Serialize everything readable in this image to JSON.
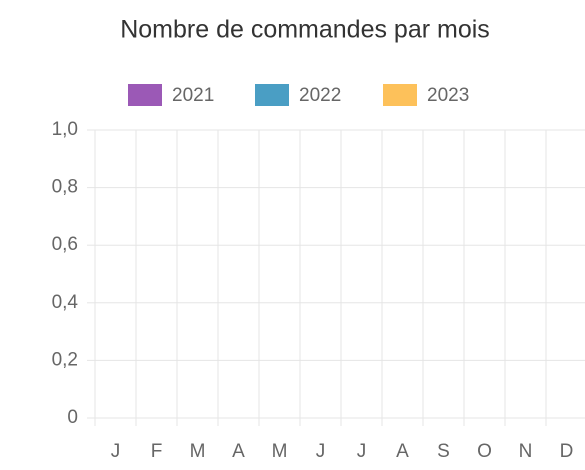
{
  "chart_data": {
    "type": "bar",
    "title": "Nombre de commandes par mois",
    "categories": [
      "J",
      "F",
      "M",
      "A",
      "M",
      "J",
      "J",
      "A",
      "S",
      "O",
      "N",
      "D"
    ],
    "series": [
      {
        "name": "2021",
        "color": "#9b59b6",
        "values": [
          null,
          null,
          null,
          null,
          null,
          null,
          null,
          null,
          null,
          null,
          null,
          null
        ]
      },
      {
        "name": "2022",
        "color": "#4a9ec4",
        "values": [
          null,
          null,
          null,
          null,
          null,
          null,
          null,
          null,
          null,
          null,
          null,
          null
        ]
      },
      {
        "name": "2023",
        "color": "#fdc15a",
        "values": [
          null,
          null,
          null,
          null,
          null,
          null,
          null,
          null,
          null,
          null,
          null,
          null
        ]
      }
    ],
    "ylim": [
      0,
      1
    ],
    "yticks": [
      0,
      {
        "value": 0.2,
        "label": "0,2"
      },
      {
        "value": 0.4,
        "label": "0,4"
      },
      {
        "value": 0.6,
        "label": "0,6"
      },
      {
        "value": 0.8,
        "label": "0,8"
      },
      {
        "value": 1,
        "label": "1,0"
      }
    ],
    "grid": true,
    "legend": "top"
  }
}
